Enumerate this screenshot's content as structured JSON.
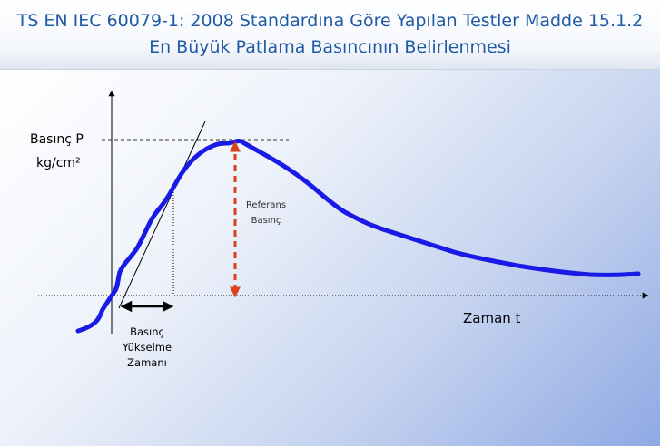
{
  "title": {
    "line1": "TS EN IEC 60079-1: 2008 Standardına Göre Yapılan Testler Madde 15.1.2",
    "line2": "En Büyük Patlama Basıncının Belirlenmesi"
  },
  "diagram": {
    "y_axis_label_line1": "Basınç  P",
    "y_axis_label_line2": "kg/cm²",
    "x_axis_label": "Zaman t",
    "reference_label_line1": "Referans",
    "reference_label_line2": "Basınç",
    "rise_time_label_line1": "Basınç",
    "rise_time_label_line2": "Yükselme",
    "rise_time_label_line3": "Zamanı",
    "curve_color": "#1a1ae6",
    "reference_arrow_color": "#d9401c",
    "title_color": "#1f5aa6"
  }
}
